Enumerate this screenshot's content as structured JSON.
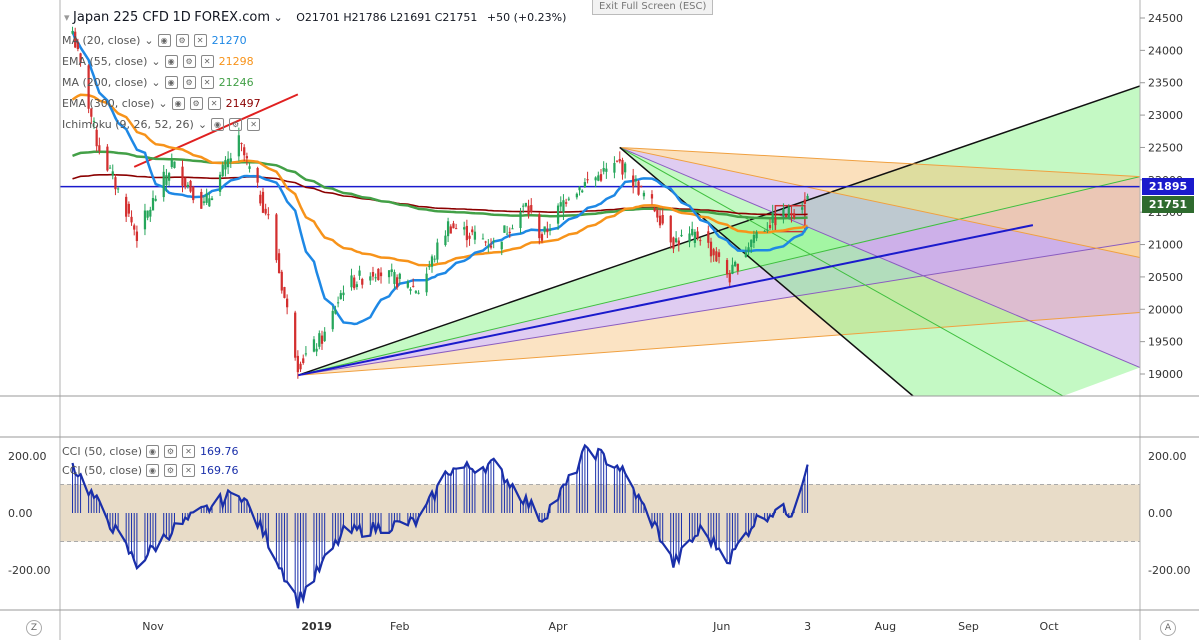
{
  "header": {
    "symbol": "Japan 225 CFD",
    "interval": "1D",
    "source": "FOREX.com",
    "ohlc": "O21701  H21786  L21691  C21751",
    "change": "+50 (+0.23%)",
    "exit_full_screen": "Exit Full Screen (ESC)"
  },
  "indicators": [
    {
      "label": "MA (20, close)",
      "value": "21270",
      "color": "#1e88e5"
    },
    {
      "label": "EMA (55, close)",
      "value": "21298",
      "color": "#f7931a"
    },
    {
      "label": "MA (200, close)",
      "value": "21246",
      "color": "#43a047"
    },
    {
      "label": "EMA (300, close)",
      "value": "21497",
      "color": "#8b0000"
    },
    {
      "label": "Ichimoku (9, 26, 52, 26)",
      "value": "",
      "color": "#555555"
    }
  ],
  "oscillator_legend": [
    {
      "label": "CCI (50, close)",
      "value": "169.76",
      "color": "#1a2faa"
    },
    {
      "label": "CCI (50, close)",
      "value": "169.76",
      "color": "#1a2faa"
    }
  ],
  "price_tags": {
    "horizontal_line": {
      "value": "21895",
      "color": "#1a1acc"
    },
    "last_price": {
      "value": "21751",
      "color": "#2e6b2e"
    }
  },
  "bottom_icons": {
    "left": "Z",
    "right": "A"
  },
  "colors": {
    "up_candle": "#26a65b",
    "down_candle": "#d32f2f",
    "hline": "#1a1acc",
    "trend_red": "#e02020",
    "trend_blue": "#1a1acc",
    "cci": "#1a2faa",
    "cci_band": "#e8dcc8"
  },
  "chart_data": {
    "type": "candlestick",
    "instrument": "Japan 225 CFD",
    "interval": "1D",
    "x_tick_labels": [
      "Nov",
      "2019",
      "Feb",
      "Apr",
      "Jun",
      "3",
      "Aug",
      "Sep",
      "Oct"
    ],
    "y_ticks": [
      19000,
      19500,
      20000,
      20500,
      21000,
      21500,
      22000,
      22500,
      23000,
      23500,
      24000,
      24500
    ],
    "ylim": [
      18650,
      24550
    ],
    "close_path_key_points": [
      {
        "date": "2018-10-02",
        "close": 24300
      },
      {
        "date": "2018-10-11",
        "close": 22600
      },
      {
        "date": "2018-10-26",
        "close": 21150
      },
      {
        "date": "2018-11-08",
        "close": 22250
      },
      {
        "date": "2018-11-20",
        "close": 21600
      },
      {
        "date": "2018-12-03",
        "close": 22580
      },
      {
        "date": "2018-12-14",
        "close": 21400
      },
      {
        "date": "2018-12-25",
        "close": 19150
      },
      {
        "date": "2019-01-04",
        "close": 19600
      },
      {
        "date": "2019-01-11",
        "close": 20350
      },
      {
        "date": "2019-01-23",
        "close": 20600
      },
      {
        "date": "2019-02-08",
        "close": 20300
      },
      {
        "date": "2019-02-19",
        "close": 21300
      },
      {
        "date": "2019-03-08",
        "close": 21000
      },
      {
        "date": "2019-03-20",
        "close": 21600
      },
      {
        "date": "2019-03-26",
        "close": 21100
      },
      {
        "date": "2019-04-05",
        "close": 21800
      },
      {
        "date": "2019-04-24",
        "close": 22250
      },
      {
        "date": "2019-05-08",
        "close": 21500
      },
      {
        "date": "2019-05-14",
        "close": 21050
      },
      {
        "date": "2019-05-24",
        "close": 21150
      },
      {
        "date": "2019-06-04",
        "close": 20500
      },
      {
        "date": "2019-06-13",
        "close": 21150
      },
      {
        "date": "2019-06-21",
        "close": 21400
      },
      {
        "date": "2019-06-27",
        "close": 21500
      },
      {
        "date": "2019-07-03",
        "close": 21751
      }
    ],
    "last_bar": {
      "open": 21701,
      "high": 21786,
      "low": 21691,
      "close": 21751,
      "change": 50,
      "change_pct": 0.23
    },
    "moving_averages": [
      {
        "name": "MA (20, close)",
        "last": 21270
      },
      {
        "name": "EMA (55, close)",
        "last": 21298
      },
      {
        "name": "MA (200, close)",
        "last": 21246
      },
      {
        "name": "EMA (300, close)",
        "last": 21497
      }
    ],
    "horizontal_line": 21895,
    "pitchfan_pivot": {
      "date": "2018-12-25",
      "price": 18980
    },
    "pitchfork_pivot": {
      "date": "2019-04-24",
      "price": 22500
    },
    "oscillator": {
      "name": "CCI (50, close)",
      "last": 169.76,
      "y_ticks": [
        -200,
        0,
        200
      ],
      "band": [
        -100,
        100
      ],
      "key_points": [
        {
          "date": "2018-10-02",
          "value": 170
        },
        {
          "date": "2018-10-26",
          "value": -180
        },
        {
          "date": "2018-11-08",
          "value": -60
        },
        {
          "date": "2018-12-03",
          "value": 80
        },
        {
          "date": "2018-12-14",
          "value": -100
        },
        {
          "date": "2018-12-25",
          "value": -310
        },
        {
          "date": "2019-01-11",
          "value": -70
        },
        {
          "date": "2019-02-08",
          "value": -30
        },
        {
          "date": "2019-02-19",
          "value": 150
        },
        {
          "date": "2019-03-08",
          "value": 170
        },
        {
          "date": "2019-03-26",
          "value": -20
        },
        {
          "date": "2019-04-05",
          "value": 110
        },
        {
          "date": "2019-04-12",
          "value": 230
        },
        {
          "date": "2019-04-24",
          "value": 160
        },
        {
          "date": "2019-05-08",
          "value": -60
        },
        {
          "date": "2019-05-14",
          "value": -180
        },
        {
          "date": "2019-05-24",
          "value": -60
        },
        {
          "date": "2019-06-04",
          "value": -160
        },
        {
          "date": "2019-06-13",
          "value": -30
        },
        {
          "date": "2019-06-21",
          "value": 10
        },
        {
          "date": "2019-06-27",
          "value": 5
        },
        {
          "date": "2019-07-03",
          "value": 169.76
        }
      ]
    }
  }
}
